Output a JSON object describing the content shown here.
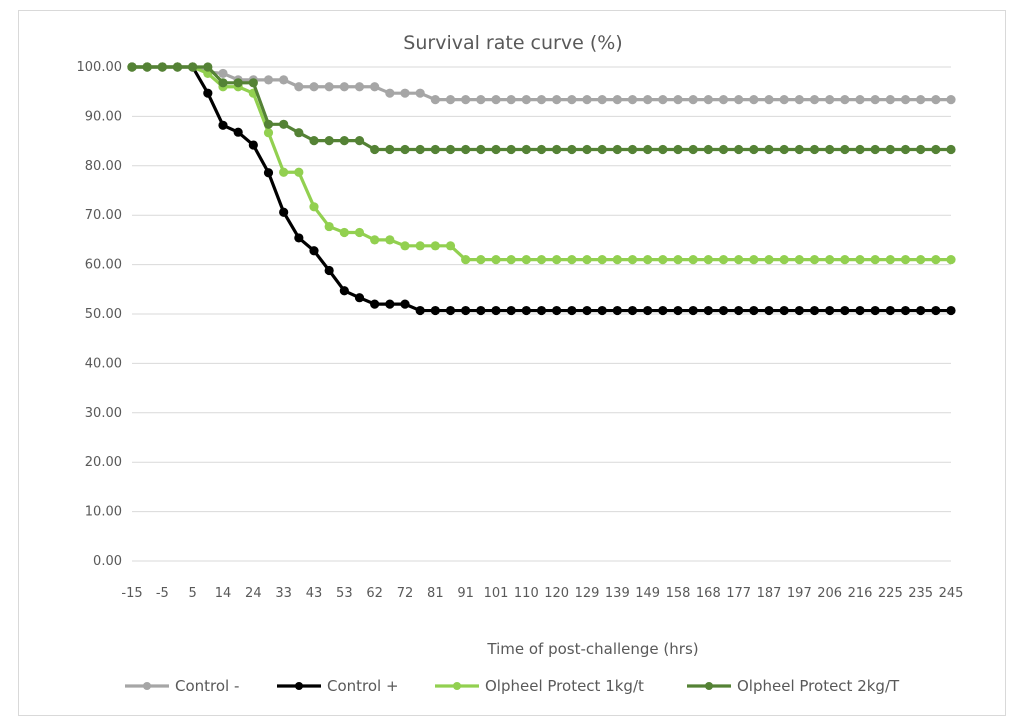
{
  "chart_data": {
    "type": "line",
    "title": "Survival rate curve (%)",
    "xlabel": "Time of post-challenge (hrs)",
    "ylabel": "",
    "ylim": [
      0,
      100
    ],
    "y_ticks": [
      "0.00",
      "10.00",
      "20.00",
      "30.00",
      "40.00",
      "50.00",
      "60.00",
      "70.00",
      "80.00",
      "90.00",
      "100.00"
    ],
    "x_tick_labels": [
      "-15",
      "-5",
      "5",
      "14",
      "24",
      "33",
      "43",
      "53",
      "62",
      "72",
      "81",
      "91",
      "101",
      "110",
      "120",
      "129",
      "139",
      "149",
      "158",
      "168",
      "177",
      "187",
      "197",
      "206",
      "216",
      "225",
      "235",
      "245"
    ],
    "grid": true,
    "legend_position": "bottom",
    "series": [
      {
        "name": "Control -",
        "color": "#a6a6a6",
        "values": [
          100,
          100,
          100,
          100,
          100,
          99,
          98.7,
          97.4,
          97.4,
          97.4,
          97.4,
          96,
          96,
          96,
          96,
          96,
          96,
          94.7,
          94.7,
          94.7,
          93.4,
          93.4,
          93.4,
          93.4,
          93.4,
          93.4,
          93.4,
          93.4,
          93.4,
          93.4,
          93.4,
          93.4,
          93.4,
          93.4,
          93.4,
          93.4,
          93.4,
          93.4,
          93.4,
          93.4,
          93.4,
          93.4,
          93.4,
          93.4,
          93.4,
          93.4,
          93.4,
          93.4,
          93.4,
          93.4,
          93.4,
          93.4,
          93.4,
          93.4,
          93.4
        ]
      },
      {
        "name": "Control +",
        "color": "#000000",
        "values": [
          100,
          100,
          100,
          100,
          100,
          94.7,
          88.2,
          86.8,
          84.2,
          78.6,
          70.6,
          65.4,
          62.8,
          58.8,
          54.7,
          53.3,
          52,
          52,
          52,
          50.7,
          50.7,
          50.7,
          50.7,
          50.7,
          50.7,
          50.7,
          50.7,
          50.7,
          50.7,
          50.7,
          50.7,
          50.7,
          50.7,
          50.7,
          50.7,
          50.7,
          50.7,
          50.7,
          50.7,
          50.7,
          50.7,
          50.7,
          50.7,
          50.7,
          50.7,
          50.7,
          50.7,
          50.7,
          50.7,
          50.7,
          50.7,
          50.7,
          50.7,
          50.7,
          50.7
        ]
      },
      {
        "name": "Olpheel Protect 1kg/t",
        "color": "#92d050",
        "values": [
          100,
          100,
          100,
          100,
          100,
          98.7,
          96,
          96,
          94.7,
          86.7,
          78.7,
          78.7,
          71.7,
          67.7,
          66.5,
          66.5,
          65,
          65,
          63.8,
          63.8,
          63.8,
          63.8,
          61,
          61,
          61,
          61,
          61,
          61,
          61,
          61,
          61,
          61,
          61,
          61,
          61,
          61,
          61,
          61,
          61,
          61,
          61,
          61,
          61,
          61,
          61,
          61,
          61,
          61,
          61,
          61,
          61,
          61,
          61,
          61,
          61
        ]
      },
      {
        "name": "Olpheel Protect 2kg/T",
        "color": "#548235",
        "values": [
          100,
          100,
          100,
          100,
          100,
          100,
          96.8,
          96.8,
          96.8,
          88.4,
          88.4,
          86.7,
          85.1,
          85.1,
          85.1,
          85.1,
          83.3,
          83.3,
          83.3,
          83.3,
          83.3,
          83.3,
          83.3,
          83.3,
          83.3,
          83.3,
          83.3,
          83.3,
          83.3,
          83.3,
          83.3,
          83.3,
          83.3,
          83.3,
          83.3,
          83.3,
          83.3,
          83.3,
          83.3,
          83.3,
          83.3,
          83.3,
          83.3,
          83.3,
          83.3,
          83.3,
          83.3,
          83.3,
          83.3,
          83.3,
          83.3,
          83.3,
          83.3,
          83.3,
          83.3
        ]
      }
    ]
  }
}
